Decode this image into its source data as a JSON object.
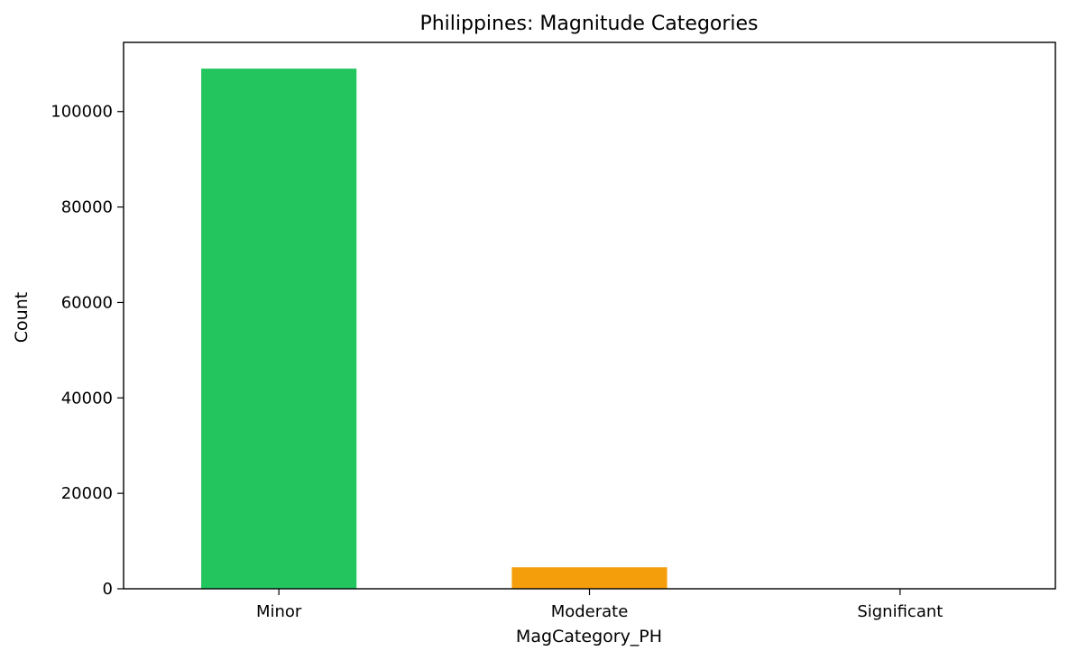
{
  "chart_data": {
    "type": "bar",
    "title": "Philippines: Magnitude Categories",
    "xlabel": "MagCategory_PH",
    "ylabel": "Count",
    "categories": [
      "Minor",
      "Moderate",
      "Significant"
    ],
    "values": [
      109000,
      4500,
      30
    ],
    "colors": [
      "#22c55e",
      "#f59e0b",
      "#ef4444"
    ],
    "ylim": [
      0,
      114500
    ],
    "yticks": [
      0,
      20000,
      40000,
      60000,
      80000,
      100000
    ],
    "ytick_labels": [
      "0",
      "20000",
      "40000",
      "60000",
      "80000",
      "100000"
    ],
    "grid": false,
    "legend": "none"
  }
}
